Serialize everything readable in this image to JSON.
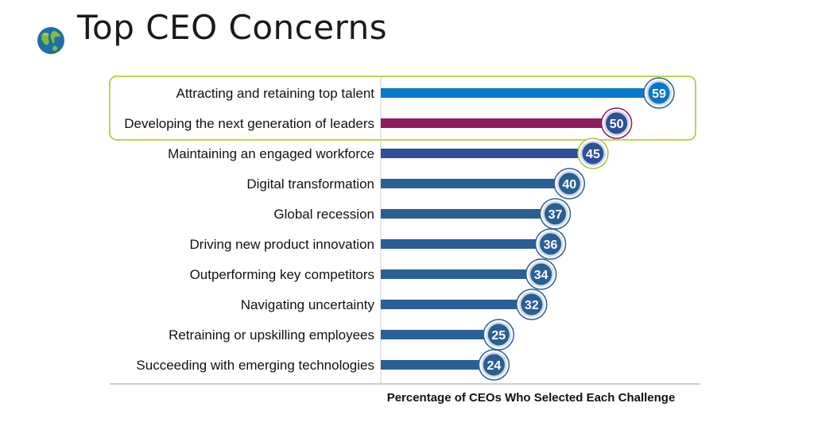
{
  "slide": {
    "title": "Top CEO Concerns",
    "icon": "globe-icon"
  },
  "chart_data": {
    "type": "bar",
    "orientation": "horizontal",
    "categories": [
      "Attracting and retaining top talent",
      "Developing the next generation of leaders",
      "Maintaining an engaged workforce",
      "Digital transformation",
      "Global recession",
      "Driving new product innovation",
      "Outperforming key competitors",
      "Navigating uncertainty",
      "Retraining or upskilling employees",
      "Succeeding with emerging technologies"
    ],
    "values": [
      59,
      50,
      45,
      40,
      37,
      36,
      34,
      32,
      25,
      24
    ],
    "bar_colors": [
      "#0a78c8",
      "#8e1a5e",
      "#2f4f9a",
      "#2a5f94",
      "#2a5f94",
      "#2a5f94",
      "#2a5f94",
      "#2a5f94",
      "#2a5f94",
      "#2a5f94"
    ],
    "badge_ring_colors": [
      "#2f5f99",
      "#8e1a5e",
      "#a9c23f",
      "#2f5f99",
      "#2f5f99",
      "#2f5f99",
      "#2f5f99",
      "#2f5f99",
      "#2f5f99",
      "#2f5f99"
    ],
    "highlight_box": {
      "rows": [
        0,
        1
      ],
      "color": "#b5cf3b"
    },
    "xlabel": "Percentage of CEOs Who Selected Each Challenge",
    "ylabel": "",
    "xlim": [
      0,
      64
    ],
    "legend": "none",
    "grid": false
  }
}
